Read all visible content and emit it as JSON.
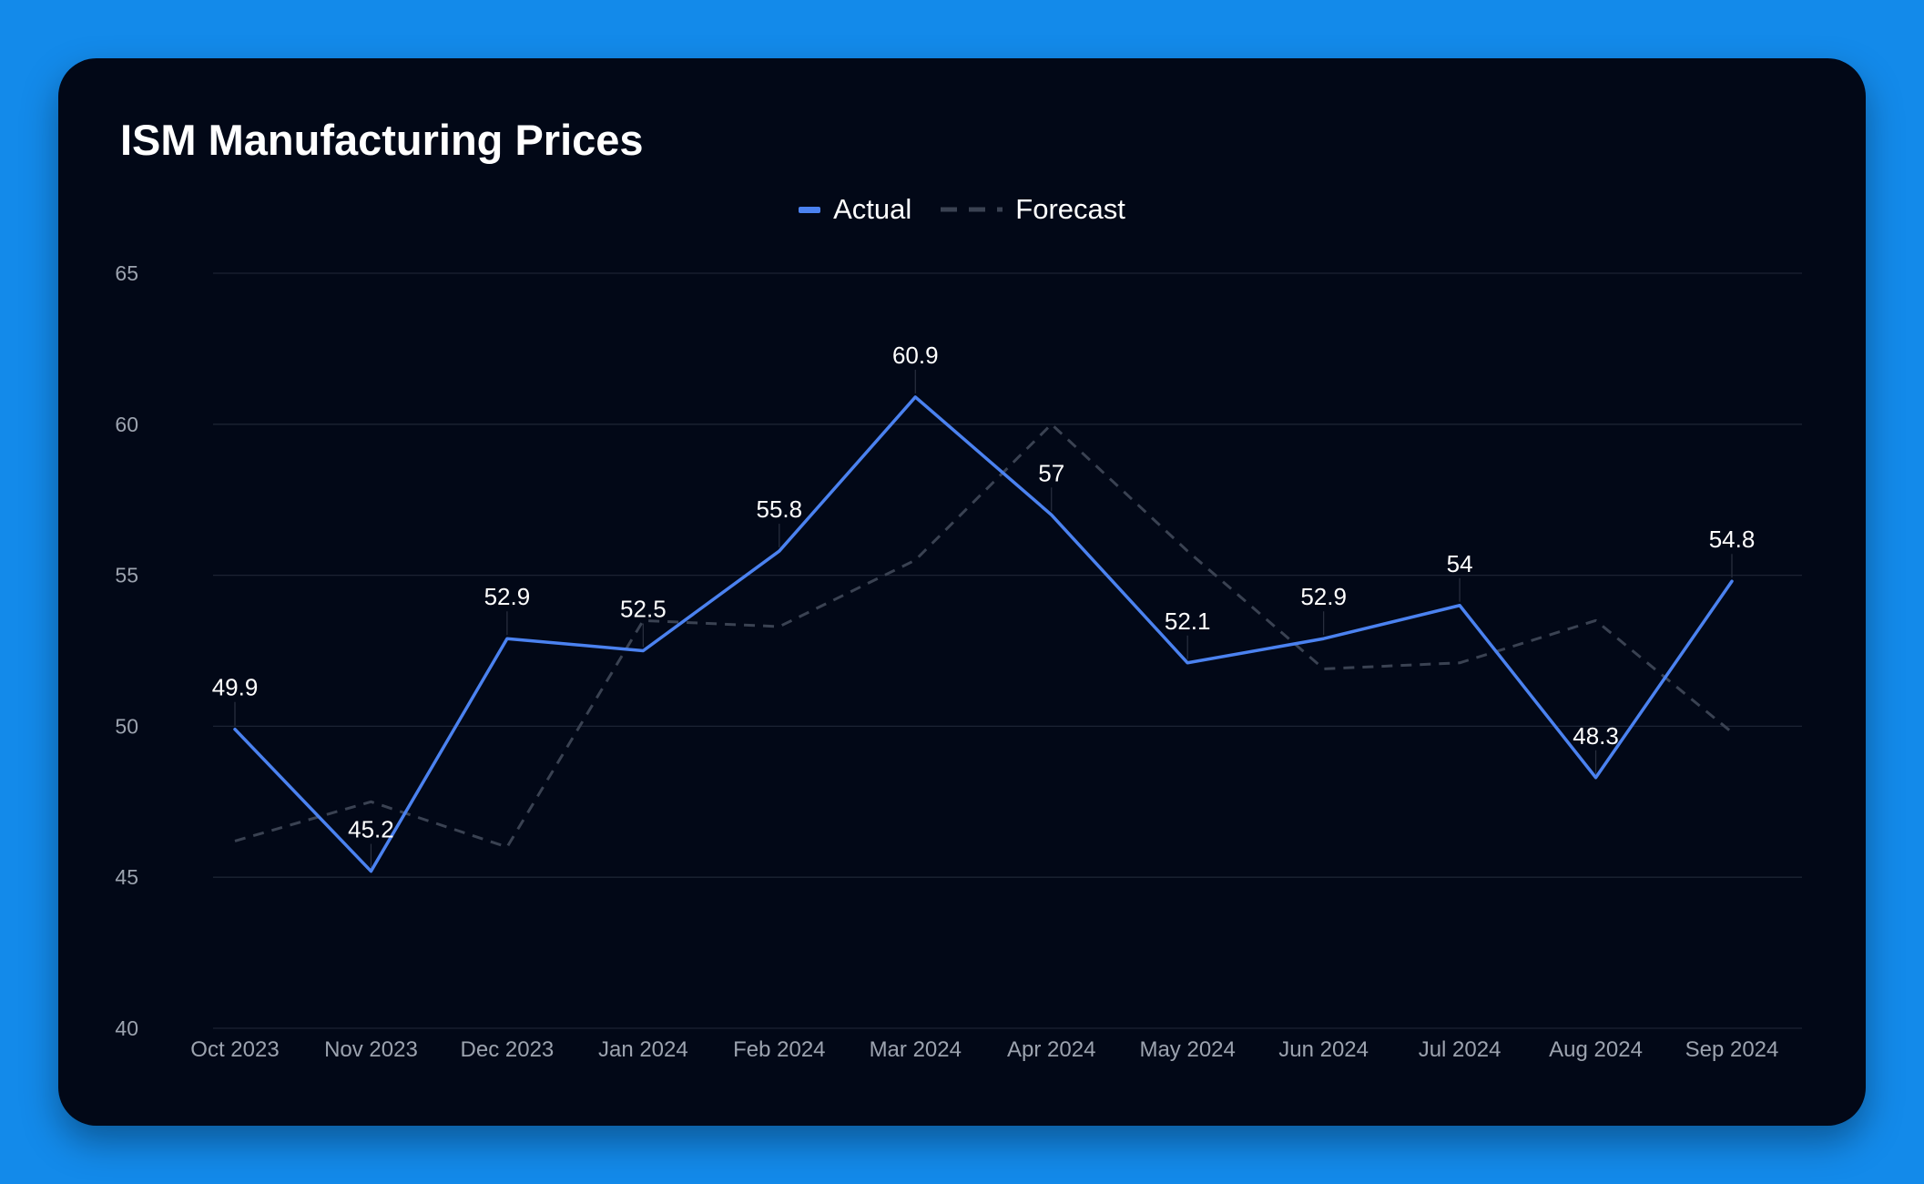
{
  "colors": {
    "page_background": "#138aea",
    "card_background": "#020817",
    "actual": "#4b82f0",
    "forecast": "#3a4252",
    "grid": "#1c2333",
    "axis_text": "#9ca3af",
    "label_text": "#ffffff"
  },
  "chart_data": {
    "type": "line",
    "title": "ISM Manufacturing Prices",
    "categories": [
      "Oct 2023",
      "Nov 2023",
      "Dec 2023",
      "Jan 2024",
      "Feb 2024",
      "Mar 2024",
      "Apr 2024",
      "May 2024",
      "Jun 2024",
      "Jul 2024",
      "Aug 2024",
      "Sep 2024"
    ],
    "series": [
      {
        "name": "Actual",
        "style": "solid",
        "values": [
          49.9,
          45.2,
          52.9,
          52.5,
          55.8,
          60.9,
          57,
          52.1,
          52.9,
          54,
          48.3,
          54.8
        ],
        "data_labels": [
          "49.9",
          "45.2",
          "52.9",
          "52.5",
          "55.8",
          "60.9",
          "57",
          "52.1",
          "52.9",
          "54",
          "48.3",
          "54.8"
        ]
      },
      {
        "name": "Forecast",
        "style": "dashed",
        "values": [
          46.2,
          47.5,
          46,
          53.5,
          53.3,
          55.5,
          60,
          55.8,
          51.9,
          52.1,
          53.5,
          49.8
        ]
      }
    ],
    "yticks": [
      "40",
      "45",
      "50",
      "55",
      "60",
      "65"
    ],
    "ylim": [
      40,
      65
    ],
    "grid": true,
    "legend_position": "top-center",
    "xlabel": "",
    "ylabel": ""
  }
}
